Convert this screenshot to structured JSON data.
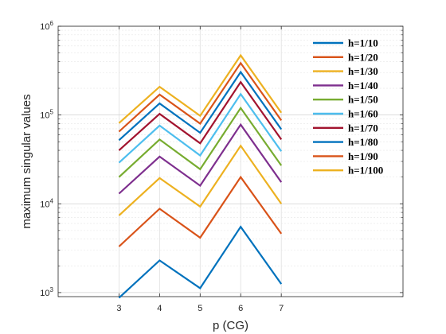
{
  "chart_data": {
    "type": "line",
    "xlabel": "p (CG)",
    "ylabel": "maximum singular values",
    "yscale": "log",
    "xlim": [
      1.5,
      10
    ],
    "ylim": [
      900,
      1000000
    ],
    "x": [
      3,
      4,
      5,
      6,
      7
    ],
    "x_tick_labels": [
      "3",
      "4",
      "5",
      "6",
      "7"
    ],
    "y_ticks": [
      {
        "value": 1000,
        "base": "10",
        "exp": "3"
      },
      {
        "value": 10000,
        "base": "10",
        "exp": "4"
      },
      {
        "value": 100000,
        "base": "10",
        "exp": "5"
      },
      {
        "value": 1000000,
        "base": "10",
        "exp": "6"
      }
    ],
    "grid": true,
    "legend_position": "top-right",
    "series": [
      {
        "name": "h=1/10",
        "color": "#0072BD",
        "values": [
          870,
          2300,
          1120,
          5500,
          1250
        ]
      },
      {
        "name": "h=1/20",
        "color": "#D95319",
        "values": [
          3300,
          8800,
          4150,
          20000,
          4600
        ]
      },
      {
        "name": "h=1/30",
        "color": "#EDB120",
        "values": [
          7400,
          19500,
          9300,
          45000,
          10000
        ]
      },
      {
        "name": "h=1/40",
        "color": "#7E2F8E",
        "values": [
          13000,
          34000,
          16000,
          78000,
          17500
        ]
      },
      {
        "name": "h=1/50",
        "color": "#77AC30",
        "values": [
          20000,
          53000,
          24500,
          120000,
          27000
        ]
      },
      {
        "name": "h=1/60",
        "color": "#4DBEEE",
        "values": [
          29000,
          76000,
          35000,
          172000,
          39000
        ]
      },
      {
        "name": "h=1/70",
        "color": "#A2142F",
        "values": [
          40000,
          103000,
          48000,
          235000,
          53000
        ]
      },
      {
        "name": "h=1/80",
        "color": "#0072BD",
        "values": [
          52000,
          135000,
          63000,
          305000,
          69000
        ]
      },
      {
        "name": "h=1/90",
        "color": "#D95319",
        "values": [
          65000,
          170000,
          80000,
          385000,
          87000
        ]
      },
      {
        "name": "h=1/100",
        "color": "#EDB120",
        "values": [
          81000,
          208000,
          98000,
          470000,
          106000
        ]
      }
    ]
  }
}
